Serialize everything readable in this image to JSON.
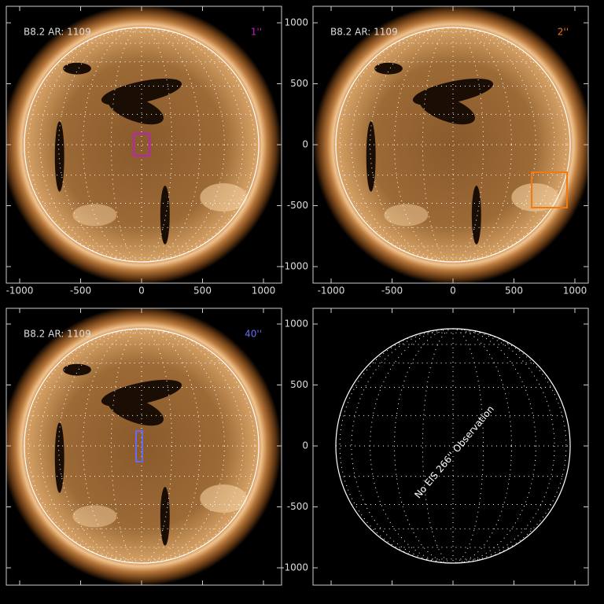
{
  "panels": [
    {
      "label": "B8.2 AR: 1109",
      "slit": "1''"
    },
    {
      "label": "B8.2 AR: 1109",
      "slit": "2''"
    },
    {
      "label": "B8.2 AR: 1109",
      "slit": "40''"
    },
    {
      "message": "No EIS 266'' Observation"
    }
  ],
  "axes": {
    "x_ticks": [
      -1000,
      -500,
      0,
      500,
      1000
    ],
    "y_ticks": [
      1000,
      500,
      0,
      -500,
      -1000
    ]
  }
}
